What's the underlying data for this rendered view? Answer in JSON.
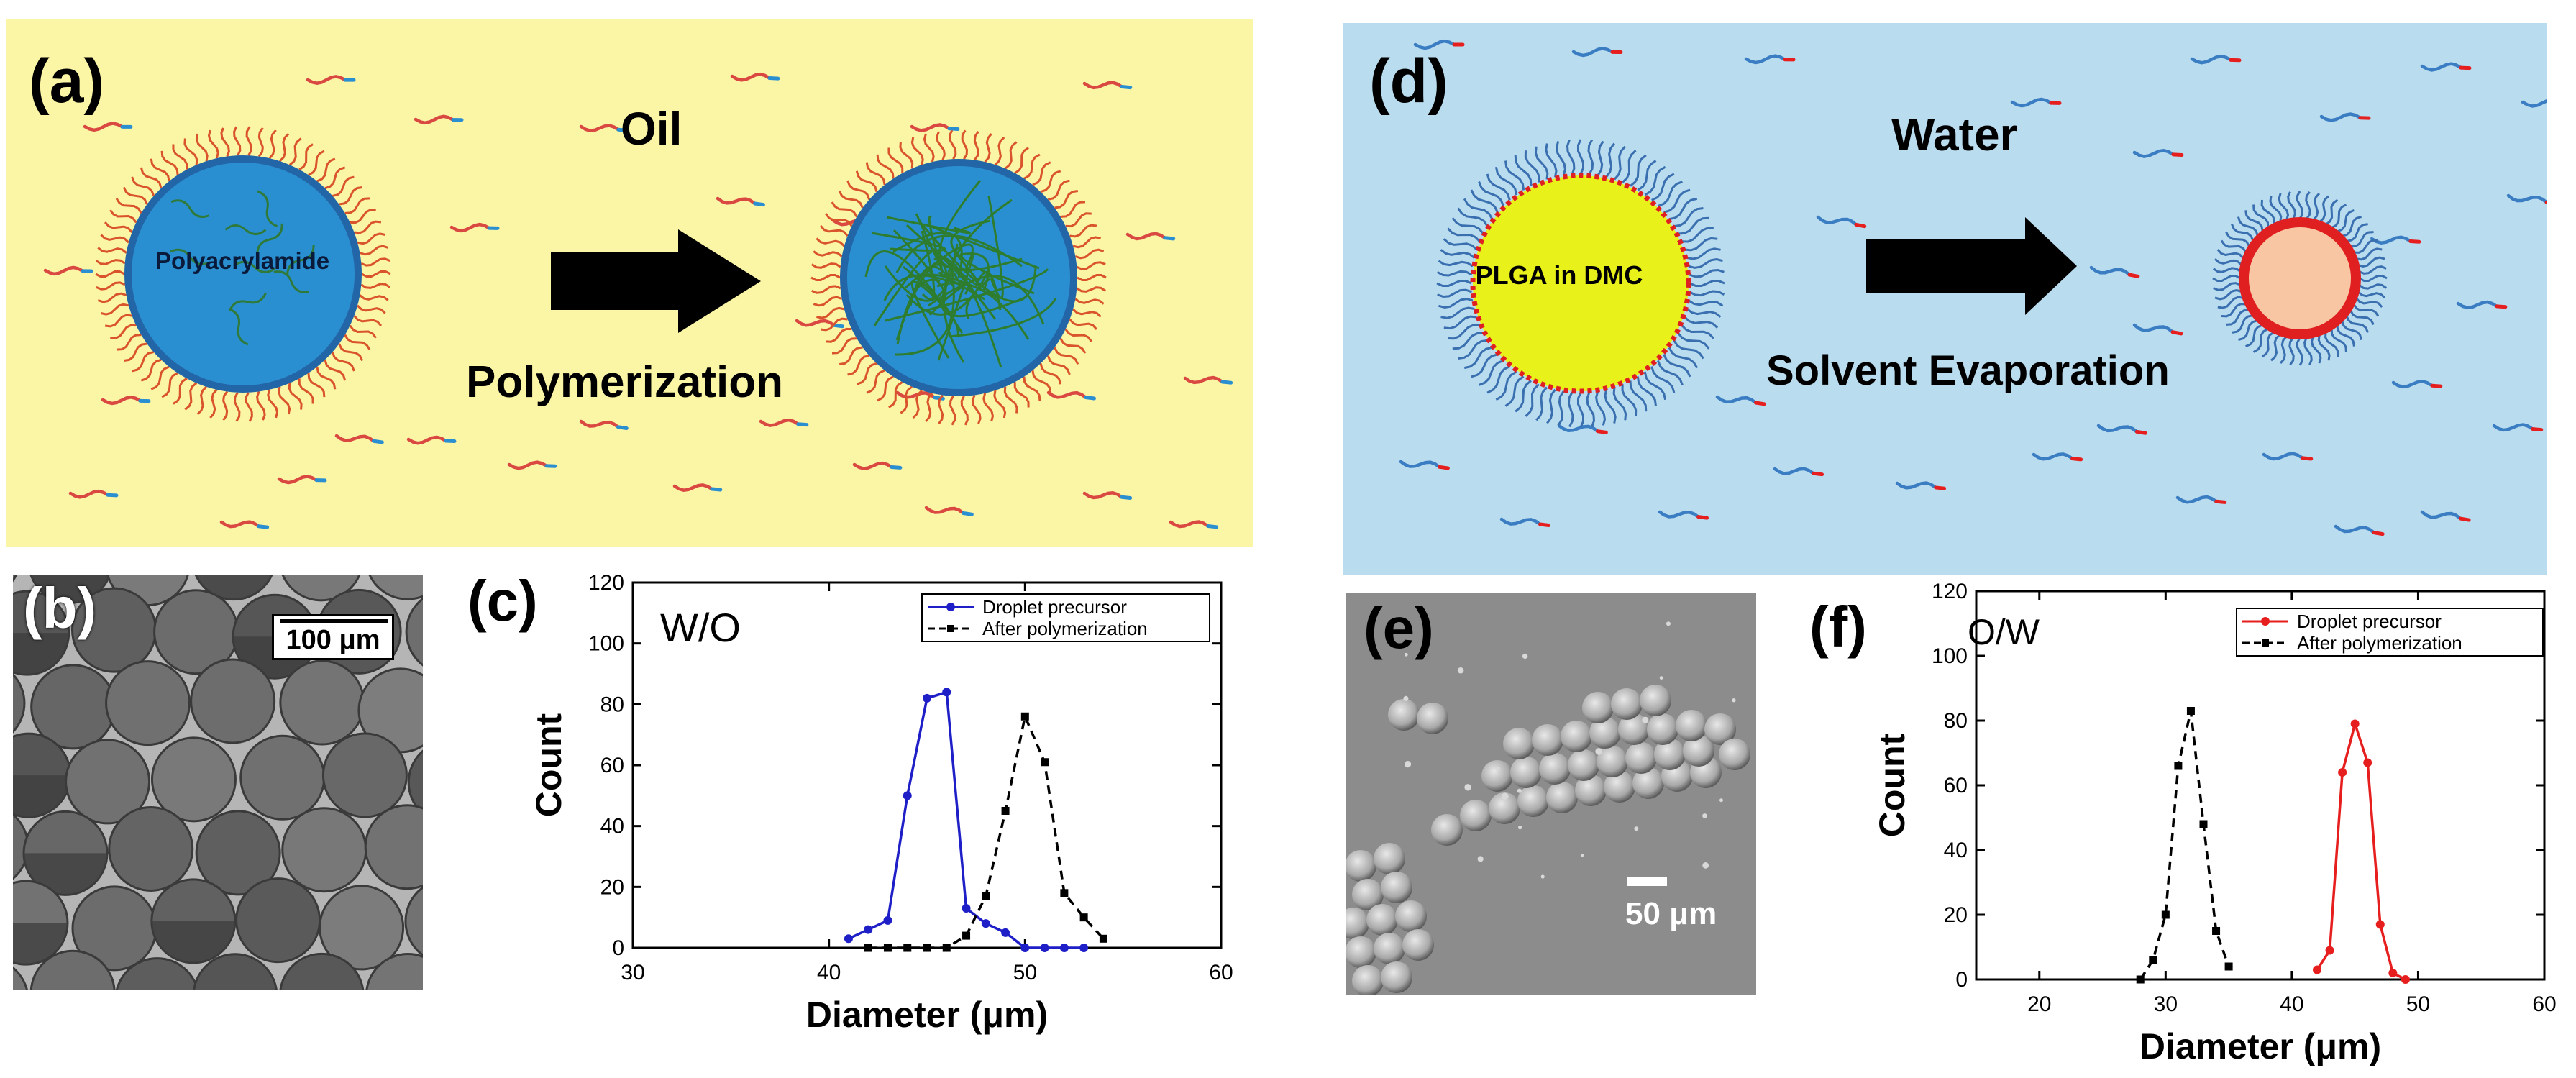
{
  "panels": {
    "a": {
      "label": "(a)",
      "medium": "Oil",
      "process": "Polymerization",
      "core": "Polyacrylamide"
    },
    "b": {
      "label": "(b)",
      "scale": "100 μm"
    },
    "c": {
      "label": "(c)",
      "emulsion": "W/O"
    },
    "d": {
      "label": "(d)",
      "medium": "Water",
      "process": "Solvent Evaporation",
      "core": "PLGA in DMC"
    },
    "e": {
      "label": "(e)",
      "scale": "50 μm"
    },
    "f": {
      "label": "(f)",
      "emulsion": "O/W"
    }
  },
  "colors": {
    "panel_a_bg": "#fbf5a6",
    "panel_d_bg": "#b9dcef",
    "droplet_blue": "#2a8fd0",
    "plga_yellow": "#e8f21a",
    "shell_red": "#e02020",
    "precursor_blue": "#1f1fc8",
    "precursor_red": "#e61e1e"
  },
  "chart_data": [
    {
      "id": "c",
      "type": "line",
      "title": "",
      "xlabel": "Diameter (μm)",
      "ylabel": "Count",
      "xlim": [
        30,
        60
      ],
      "ylim": [
        0,
        120
      ],
      "xticks": [
        30,
        40,
        50,
        60
      ],
      "yticks": [
        0,
        20,
        40,
        60,
        80,
        100,
        120
      ],
      "legend_position": "top-right",
      "series": [
        {
          "name": "Droplet precursor",
          "color": "#1f1fc8",
          "dash": "solid",
          "marker": "circle",
          "x": [
            41,
            42,
            43,
            44,
            45,
            46,
            47,
            48,
            49,
            50,
            51,
            52,
            53
          ],
          "y": [
            3,
            6,
            9,
            50,
            82,
            84,
            13,
            8,
            5,
            0,
            0,
            0,
            0
          ]
        },
        {
          "name": "After polymerization",
          "color": "#000000",
          "dash": "dashed",
          "marker": "square",
          "x": [
            42,
            43,
            44,
            45,
            46,
            47,
            48,
            49,
            50,
            51,
            52,
            53,
            54
          ],
          "y": [
            0,
            0,
            0,
            0,
            0,
            4,
            17,
            45,
            76,
            61,
            18,
            10,
            3
          ]
        }
      ]
    },
    {
      "id": "f",
      "type": "line",
      "title": "",
      "xlabel": "Diameter (μm)",
      "ylabel": "Count",
      "xlim": [
        15,
        60
      ],
      "ylim": [
        0,
        120
      ],
      "xticks": [
        20,
        30,
        40,
        50,
        60
      ],
      "yticks": [
        0,
        20,
        40,
        60,
        80,
        100,
        120
      ],
      "legend_position": "top-right",
      "series": [
        {
          "name": "Droplet precursor",
          "color": "#e61e1e",
          "dash": "solid",
          "marker": "circle",
          "x": [
            42,
            43,
            44,
            45,
            46,
            47,
            48,
            49
          ],
          "y": [
            3,
            9,
            64,
            79,
            67,
            17,
            2,
            0
          ]
        },
        {
          "name": "After polymerization",
          "color": "#000000",
          "dash": "dashed",
          "marker": "square",
          "x": [
            28,
            29,
            30,
            31,
            32,
            33,
            34,
            35
          ],
          "y": [
            0,
            6,
            20,
            66,
            83,
            48,
            15,
            4
          ]
        }
      ]
    }
  ]
}
